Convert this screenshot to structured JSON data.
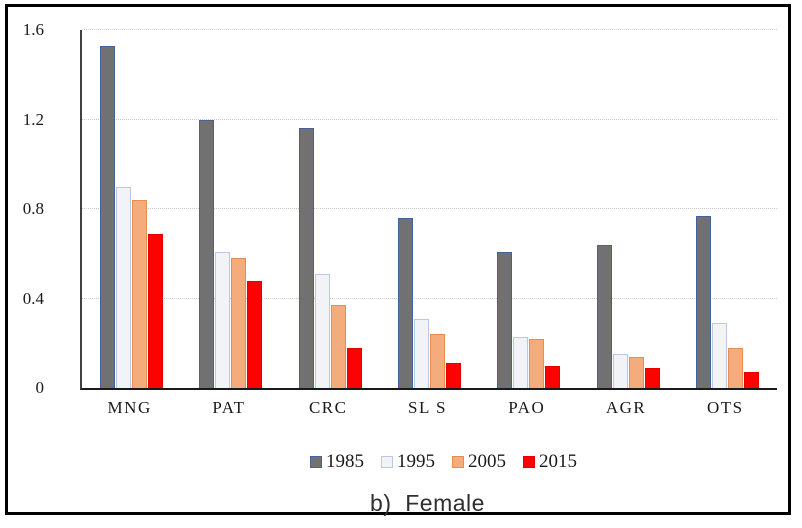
{
  "chart_data": {
    "type": "bar",
    "title": "b)  Female",
    "categories": [
      "MNG",
      "PAT",
      "CRC",
      "SL S",
      "PAO",
      "AGR",
      "OTS"
    ],
    "series": [
      {
        "name": "1985",
        "fill": "#717171",
        "stroke": "#44619b",
        "values": [
          1.53,
          1.2,
          1.16,
          0.76,
          0.61,
          0.64,
          0.77
        ]
      },
      {
        "name": "1995",
        "fill": "#f1f3f6",
        "stroke": "#b9c9e2",
        "values": [
          0.9,
          0.61,
          0.51,
          0.31,
          0.23,
          0.15,
          0.29
        ]
      },
      {
        "name": "2005",
        "fill": "#f4ac7c",
        "stroke": "#e88d50",
        "values": [
          0.84,
          0.58,
          0.37,
          0.24,
          0.22,
          0.14,
          0.18
        ]
      },
      {
        "name": "2015",
        "fill": "#fb0300",
        "stroke": "#e00400",
        "values": [
          0.69,
          0.48,
          0.18,
          0.11,
          0.1,
          0.09,
          0.07
        ]
      }
    ],
    "y_ticks": [
      {
        "label": "0",
        "value": 0.0
      },
      {
        "label": "0.4",
        "value": 0.4
      },
      {
        "label": "0.8",
        "value": 0.8
      },
      {
        "label": "1.2",
        "value": 1.2
      },
      {
        "label": "1.6",
        "value": 1.6
      }
    ],
    "ylim": [
      0,
      1.6
    ],
    "xlabel": "",
    "ylabel": "",
    "grid": true,
    "legend_position": "bottom"
  }
}
